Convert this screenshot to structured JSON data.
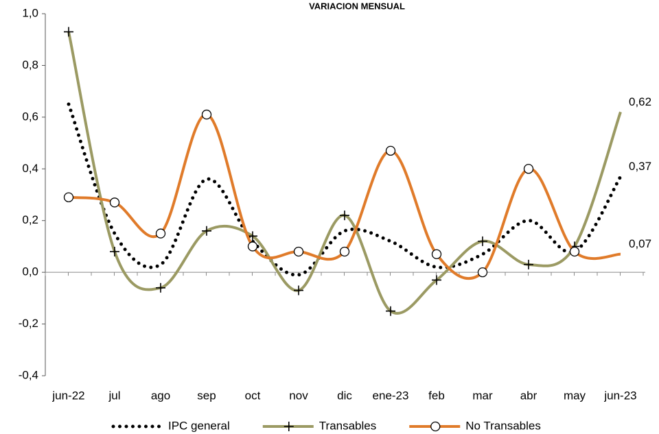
{
  "chart_data": {
    "type": "line",
    "title": "VARIACION MENSUAL",
    "categories": [
      "jun-22",
      "jul",
      "ago",
      "sep",
      "oct",
      "nov",
      "dic",
      "ene-23",
      "feb",
      "mar",
      "abr",
      "may",
      "jun-23"
    ],
    "series": [
      {
        "name": "IPC general",
        "color": "#000000",
        "style": "dotted",
        "values": [
          0.65,
          0.15,
          0.03,
          0.36,
          0.12,
          -0.01,
          0.16,
          0.12,
          0.02,
          0.07,
          0.2,
          0.08,
          0.37
        ],
        "value_labels": [
          null,
          null,
          null,
          null,
          null,
          null,
          null,
          null,
          null,
          null,
          null,
          null,
          "0,37"
        ]
      },
      {
        "name": "Transables",
        "color": "#9b9a63",
        "label_color": "#8c8c00",
        "marker": "plus",
        "values": [
          0.93,
          0.08,
          -0.06,
          0.16,
          0.14,
          -0.07,
          0.22,
          -0.15,
          -0.03,
          0.12,
          0.03,
          0.1,
          0.62
        ],
        "value_labels": [
          null,
          null,
          null,
          null,
          null,
          null,
          null,
          null,
          null,
          null,
          null,
          null,
          "0,62"
        ]
      },
      {
        "name": "No Transables",
        "color": "#e07b2a",
        "marker": "circle",
        "values": [
          0.29,
          0.27,
          0.15,
          0.61,
          0.1,
          0.08,
          0.08,
          0.47,
          0.07,
          0.0,
          0.4,
          0.08,
          0.07
        ],
        "value_labels": [
          null,
          null,
          null,
          null,
          null,
          null,
          null,
          null,
          null,
          null,
          null,
          null,
          "0,07"
        ]
      }
    ],
    "ylim": [
      -0.4,
      1.0
    ],
    "yticks": [
      {
        "value": -0.4,
        "label": "-0,4"
      },
      {
        "value": -0.2,
        "label": "-0,2"
      },
      {
        "value": 0,
        "label": "0,0"
      },
      {
        "value": 0.2,
        "label": "0,2"
      },
      {
        "value": 0.4,
        "label": "0,4"
      },
      {
        "value": 0.6,
        "label": "0,6"
      },
      {
        "value": 0.8,
        "label": "0,8"
      },
      {
        "value": 1.0,
        "label": "1,0"
      }
    ],
    "legend": "bottom"
  }
}
